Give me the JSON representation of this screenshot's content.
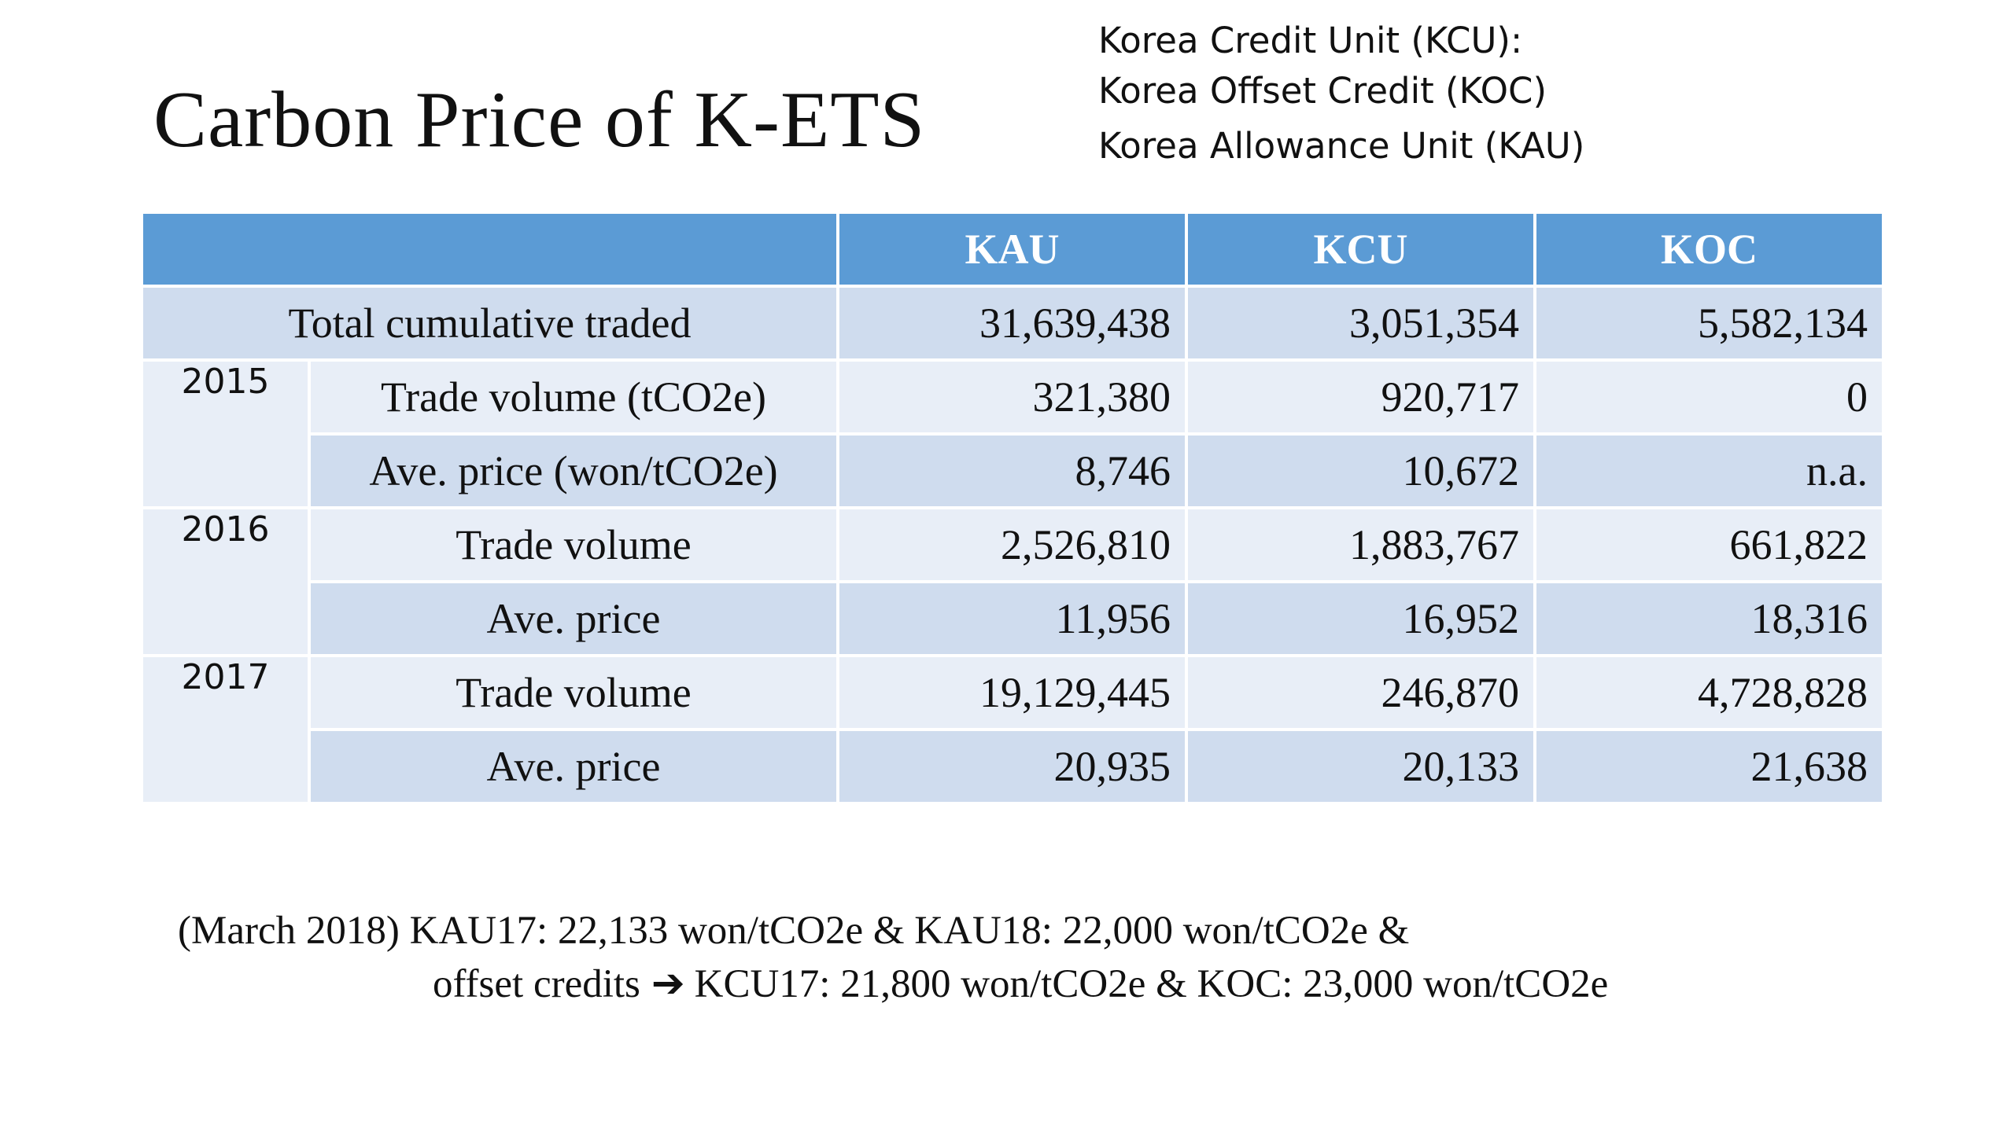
{
  "title": "Carbon Price of K-ETS",
  "legend": [
    "Korea Credit Unit (KCU):",
    "Korea Offset Credit (KOC)",
    "Korea Allowance Unit (KAU)"
  ],
  "table": {
    "headers": [
      "",
      "KAU",
      "KCU",
      "KOC"
    ],
    "total_row": {
      "label": "Total cumulative traded",
      "values": [
        "31,639,438",
        "3,051,354",
        "5,582,134"
      ]
    },
    "years": [
      {
        "year": "2015",
        "rows": [
          {
            "label": "Trade volume (tCO2e)",
            "values": [
              "321,380",
              "920,717",
              "0"
            ]
          },
          {
            "label": "Ave. price (won/tCO2e)",
            "values": [
              "8,746",
              "10,672",
              "n.a."
            ]
          }
        ]
      },
      {
        "year": "2016",
        "rows": [
          {
            "label": "Trade volume",
            "values": [
              "2,526,810",
              "1,883,767",
              "661,822"
            ]
          },
          {
            "label": "Ave. price",
            "values": [
              "11,956",
              "16,952",
              "18,316"
            ]
          }
        ]
      },
      {
        "year": "2017",
        "rows": [
          {
            "label": "Trade volume",
            "values": [
              "19,129,445",
              "246,870",
              "4,728,828"
            ]
          },
          {
            "label": "Ave. price",
            "values": [
              "20,935",
              "20,133",
              "21,638"
            ]
          }
        ]
      }
    ]
  },
  "note": {
    "line1": "(March 2018) KAU17: 22,133 won/tCO2e  & KAU18: 22,000 won/tCO2e &",
    "line2_before": "offset credits",
    "arrow_icon": "right-arrow-icon",
    "line2_after": "KCU17: 21,800 won/tCO2e  & KOC: 23,000 won/tCO2e"
  }
}
